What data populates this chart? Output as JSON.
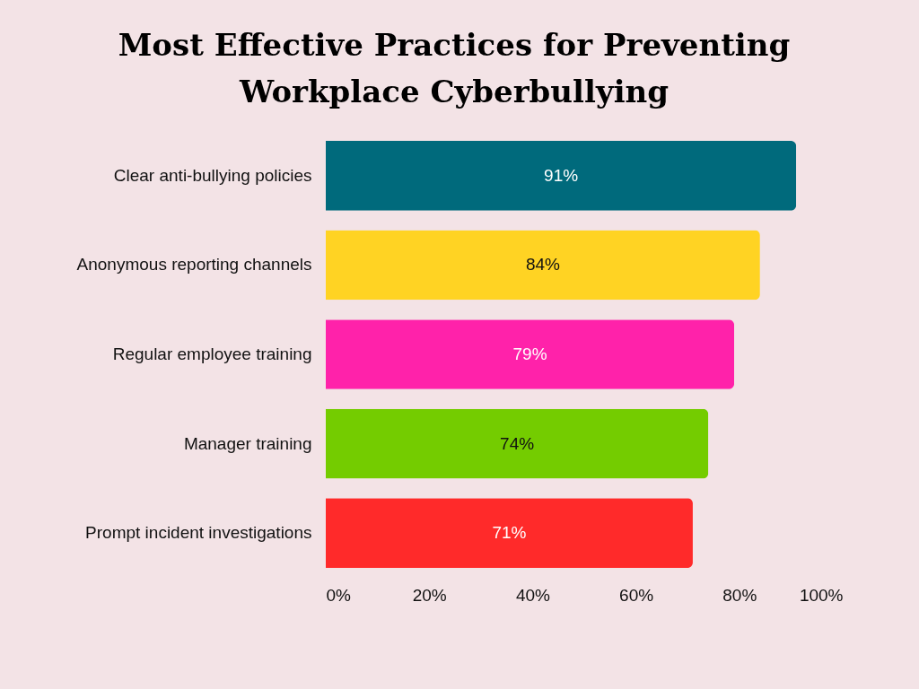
{
  "chart_data": {
    "type": "bar",
    "orientation": "horizontal",
    "title": "Most Effective Practices for Preventing Workplace Cyberbullying",
    "categories": [
      "Clear anti-bullying policies",
      "Anonymous reporting channels",
      "Regular employee training",
      "Manager training",
      "Prompt incident investigations"
    ],
    "values": [
      91,
      84,
      79,
      74,
      71
    ],
    "colors": [
      "#006a7c",
      "#ffd323",
      "#ff22aa",
      "#74cc00",
      "#ff2a2a"
    ],
    "value_labels": [
      "91%",
      "84%",
      "79%",
      "74%",
      "71%"
    ],
    "xlim": [
      0,
      100
    ],
    "xticks": [
      {
        "value": 0,
        "label": "0%"
      },
      {
        "value": 20,
        "label": "20%"
      },
      {
        "value": 40,
        "label": "40%"
      },
      {
        "value": 60,
        "label": "60%"
      },
      {
        "value": 80,
        "label": "80%"
      },
      {
        "value": 100,
        "label": "100%"
      }
    ],
    "grid": false,
    "legend": false
  }
}
